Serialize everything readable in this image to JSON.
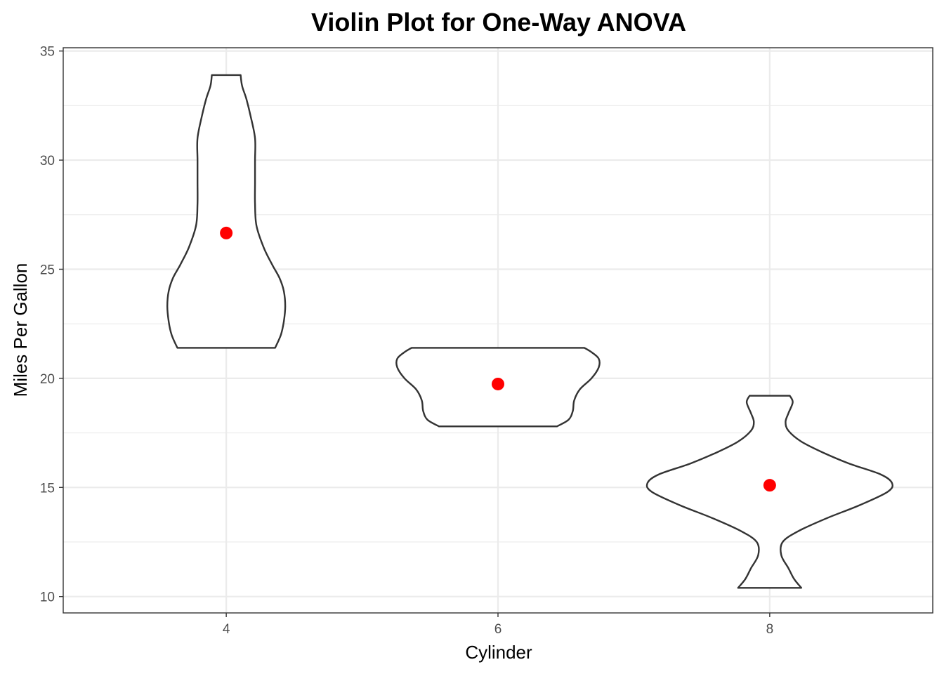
{
  "chart_data": {
    "type": "violin",
    "title": "Violin Plot for One-Way ANOVA",
    "xlabel": "Cylinder",
    "ylabel": "Miles Per Gallon",
    "categories": [
      "4",
      "6",
      "8"
    ],
    "ylim": [
      9.25,
      35.15
    ],
    "yticks": [
      10,
      15,
      20,
      25,
      30,
      35
    ],
    "grid": true,
    "legend": "none",
    "colors": {
      "violin_outline": "#333333",
      "violin_fill": "#ffffff",
      "mean_point": "#ff0000",
      "grid": "#ebebeb"
    },
    "groups": [
      {
        "category": "4",
        "min": 21.4,
        "max": 33.9,
        "mean": 26.66,
        "density": [
          [
            21.4,
            0.34
          ],
          [
            22.0,
            0.38
          ],
          [
            22.6,
            0.4
          ],
          [
            23.3,
            0.41
          ],
          [
            24.0,
            0.4
          ],
          [
            24.6,
            0.37
          ],
          [
            25.2,
            0.32
          ],
          [
            26.0,
            0.26
          ],
          [
            27.0,
            0.21
          ],
          [
            28.0,
            0.2
          ],
          [
            29.0,
            0.2
          ],
          [
            30.0,
            0.2
          ],
          [
            31.0,
            0.2
          ],
          [
            32.0,
            0.17
          ],
          [
            32.8,
            0.14
          ],
          [
            33.4,
            0.11
          ],
          [
            33.9,
            0.1
          ]
        ]
      },
      {
        "category": "6",
        "min": 17.8,
        "max": 21.4,
        "mean": 19.74,
        "density": [
          [
            17.8,
            0.41
          ],
          [
            18.1,
            0.49
          ],
          [
            18.5,
            0.52
          ],
          [
            19.0,
            0.53
          ],
          [
            19.5,
            0.57
          ],
          [
            20.0,
            0.65
          ],
          [
            20.5,
            0.7
          ],
          [
            20.9,
            0.7
          ],
          [
            21.2,
            0.65
          ],
          [
            21.4,
            0.6
          ]
        ]
      },
      {
        "category": "8",
        "min": 10.4,
        "max": 19.2,
        "mean": 15.1,
        "density": [
          [
            10.4,
            0.22
          ],
          [
            10.8,
            0.17
          ],
          [
            11.3,
            0.13
          ],
          [
            11.9,
            0.08
          ],
          [
            12.5,
            0.09
          ],
          [
            13.0,
            0.2
          ],
          [
            13.6,
            0.4
          ],
          [
            14.2,
            0.63
          ],
          [
            14.8,
            0.82
          ],
          [
            15.2,
            0.85
          ],
          [
            15.6,
            0.77
          ],
          [
            16.1,
            0.55
          ],
          [
            16.6,
            0.37
          ],
          [
            17.1,
            0.22
          ],
          [
            17.6,
            0.13
          ],
          [
            18.0,
            0.11
          ],
          [
            18.4,
            0.13
          ],
          [
            18.9,
            0.16
          ],
          [
            19.2,
            0.14
          ]
        ]
      }
    ]
  }
}
